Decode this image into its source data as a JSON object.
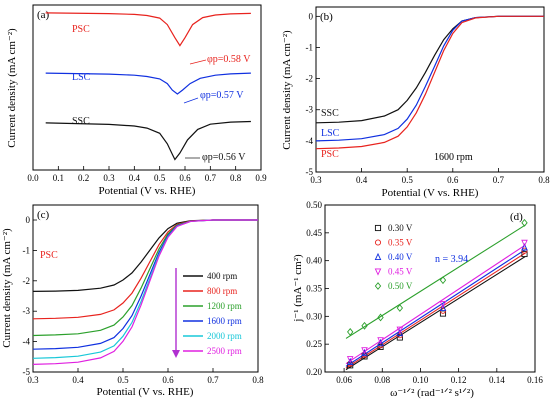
{
  "chart_data": [
    {
      "panel_label": "(a)",
      "type": "line",
      "xlabel": "Potential (V vs. RHE)",
      "ylabel": "Current density (mA cm⁻²)",
      "xlim": [
        0.0,
        0.9
      ],
      "xticks": [
        "0.0",
        "0.1",
        "0.2",
        "0.3",
        "0.4",
        "0.5",
        "0.6",
        "0.7",
        "0.8",
        "0.9"
      ],
      "y_tick_labels_shown": false,
      "series": [
        {
          "name": "PSC",
          "color": "#e8231e",
          "peak_label": "φp=0.58 V",
          "x": [
            0.05,
            0.3,
            0.4,
            0.45,
            0.5,
            0.53,
            0.56,
            0.58,
            0.6,
            0.63,
            0.67,
            0.72,
            0.78,
            0.86
          ],
          "y": [
            0.0,
            -0.03,
            -0.06,
            -0.1,
            -0.2,
            -0.45,
            -0.95,
            -1.25,
            -0.95,
            -0.45,
            -0.18,
            -0.08,
            -0.04,
            -0.02
          ]
        },
        {
          "name": "LSC",
          "color": "#1030e0",
          "peak_label": "φp=0.57 V",
          "x": [
            0.05,
            0.3,
            0.4,
            0.45,
            0.5,
            0.53,
            0.55,
            0.57,
            0.59,
            0.62,
            0.66,
            0.72,
            0.78,
            0.86
          ],
          "y": [
            -2.3,
            -2.34,
            -2.38,
            -2.43,
            -2.52,
            -2.7,
            -2.95,
            -3.1,
            -2.95,
            -2.7,
            -2.5,
            -2.38,
            -2.33,
            -2.3
          ]
        },
        {
          "name": "SSC",
          "color": "#111111",
          "peak_label": "φp=0.56 V",
          "x": [
            0.05,
            0.3,
            0.4,
            0.45,
            0.5,
            0.53,
            0.55,
            0.56,
            0.58,
            0.61,
            0.65,
            0.7,
            0.78,
            0.86
          ],
          "y": [
            -4.2,
            -4.26,
            -4.32,
            -4.4,
            -4.6,
            -5.0,
            -5.4,
            -5.6,
            -5.35,
            -4.85,
            -4.45,
            -4.25,
            -4.17,
            -4.15
          ]
        }
      ]
    },
    {
      "panel_label": "(b)",
      "type": "line",
      "xlabel": "Potential  (V vs. RHE)",
      "ylabel": "Current density (mA cm⁻²)",
      "xlim": [
        0.3,
        0.8
      ],
      "ylim": [
        -5,
        0
      ],
      "xticks": [
        "0.3",
        "0.4",
        "0.5",
        "0.6",
        "0.7",
        "0.8"
      ],
      "yticks": [
        "0",
        "-1",
        "-2",
        "-3",
        "-4",
        "-5"
      ],
      "annotation": "1600 rpm",
      "series": [
        {
          "name": "SSC",
          "color": "#111111",
          "x": [
            0.3,
            0.35,
            0.4,
            0.45,
            0.48,
            0.5,
            0.52,
            0.54,
            0.56,
            0.58,
            0.6,
            0.62,
            0.65,
            0.7,
            0.8
          ],
          "y": [
            -3.42,
            -3.4,
            -3.35,
            -3.2,
            -3.0,
            -2.7,
            -2.3,
            -1.8,
            -1.25,
            -0.75,
            -0.4,
            -0.15,
            -0.04,
            0.0,
            0.0
          ]
        },
        {
          "name": "LSC",
          "color": "#1030e0",
          "x": [
            0.3,
            0.35,
            0.4,
            0.45,
            0.48,
            0.5,
            0.52,
            0.54,
            0.56,
            0.58,
            0.6,
            0.62,
            0.65,
            0.7,
            0.8
          ],
          "y": [
            -4.0,
            -3.98,
            -3.93,
            -3.8,
            -3.6,
            -3.3,
            -2.85,
            -2.25,
            -1.6,
            -0.95,
            -0.45,
            -0.15,
            -0.04,
            0.0,
            0.0
          ]
        },
        {
          "name": "PSC",
          "color": "#e8231e",
          "x": [
            0.3,
            0.35,
            0.4,
            0.45,
            0.48,
            0.5,
            0.52,
            0.54,
            0.56,
            0.58,
            0.6,
            0.62,
            0.65,
            0.7,
            0.8
          ],
          "y": [
            -4.25,
            -4.23,
            -4.18,
            -4.05,
            -3.85,
            -3.55,
            -3.1,
            -2.5,
            -1.8,
            -1.1,
            -0.55,
            -0.2,
            -0.05,
            0.0,
            0.0
          ]
        }
      ]
    },
    {
      "panel_label": "(c)",
      "type": "line",
      "xlabel": "Potential  (V vs. RHE)",
      "ylabel": "Current density (mA cm⁻²)",
      "xlim": [
        0.3,
        0.8
      ],
      "ylim": [
        -5,
        0
      ],
      "xticks": [
        "0.3",
        "0.4",
        "0.5",
        "0.6",
        "0.7",
        "0.8"
      ],
      "yticks": [
        "0",
        "-1",
        "-2",
        "-3",
        "-4",
        "-5"
      ],
      "annotation": "PSC",
      "legend_position": "bottom-right",
      "series": [
        {
          "name": "400 rpm",
          "color": "#111111",
          "limit": -2.35
        },
        {
          "name": "800 rpm",
          "color": "#e8231e",
          "limit": -3.25
        },
        {
          "name": "1200 rpm",
          "color": "#2ca02c",
          "limit": -3.8
        },
        {
          "name": "1600 rpm",
          "color": "#1030e0",
          "limit": -4.25
        },
        {
          "name": "2000 rpm",
          "color": "#19c8d8",
          "limit": -4.55
        },
        {
          "name": "2500 rpm",
          "color": "#e020e0",
          "limit": -4.75
        }
      ]
    },
    {
      "panel_label": "(d)",
      "type": "scatter",
      "xlabel": "ω⁻¹ᐟ²  (rad⁻¹ᐟ² s¹ᐟ²)",
      "ylabel": "j⁻¹ (mA⁻¹ cm²)",
      "xlim": [
        0.05,
        0.16
      ],
      "ylim": [
        0.2,
        0.5
      ],
      "xticks": [
        "0.06",
        "0.08",
        "0.10",
        "0.12",
        "0.14",
        "0.16"
      ],
      "yticks": [
        "0.20",
        "0.25",
        "0.30",
        "0.35",
        "0.40",
        "0.45",
        "0.50"
      ],
      "annotation": "n = 3.94",
      "legend_position": "top-left",
      "x": [
        0.0632,
        0.0707,
        0.0791,
        0.0892,
        0.1118,
        0.1545
      ],
      "series": [
        {
          "name": "0.30 V",
          "color": "#111111",
          "marker": "square",
          "y": [
            0.212,
            0.228,
            0.245,
            0.262,
            0.305,
            0.412
          ]
        },
        {
          "name": "0.35 V",
          "color": "#e8231e",
          "marker": "circle",
          "y": [
            0.215,
            0.231,
            0.248,
            0.266,
            0.31,
            0.418
          ]
        },
        {
          "name": "0.40 V",
          "color": "#1030e0",
          "marker": "triangle-up",
          "y": [
            0.218,
            0.234,
            0.252,
            0.27,
            0.315,
            0.424
          ]
        },
        {
          "name": "0.45 V",
          "color": "#e020e0",
          "marker": "triangle-down",
          "y": [
            0.223,
            0.239,
            0.257,
            0.276,
            0.322,
            0.432
          ]
        },
        {
          "name": "0.50 V",
          "color": "#2ca02c",
          "marker": "diamond",
          "y": [
            0.272,
            0.283,
            0.298,
            0.315,
            0.365,
            0.468
          ]
        }
      ]
    }
  ]
}
